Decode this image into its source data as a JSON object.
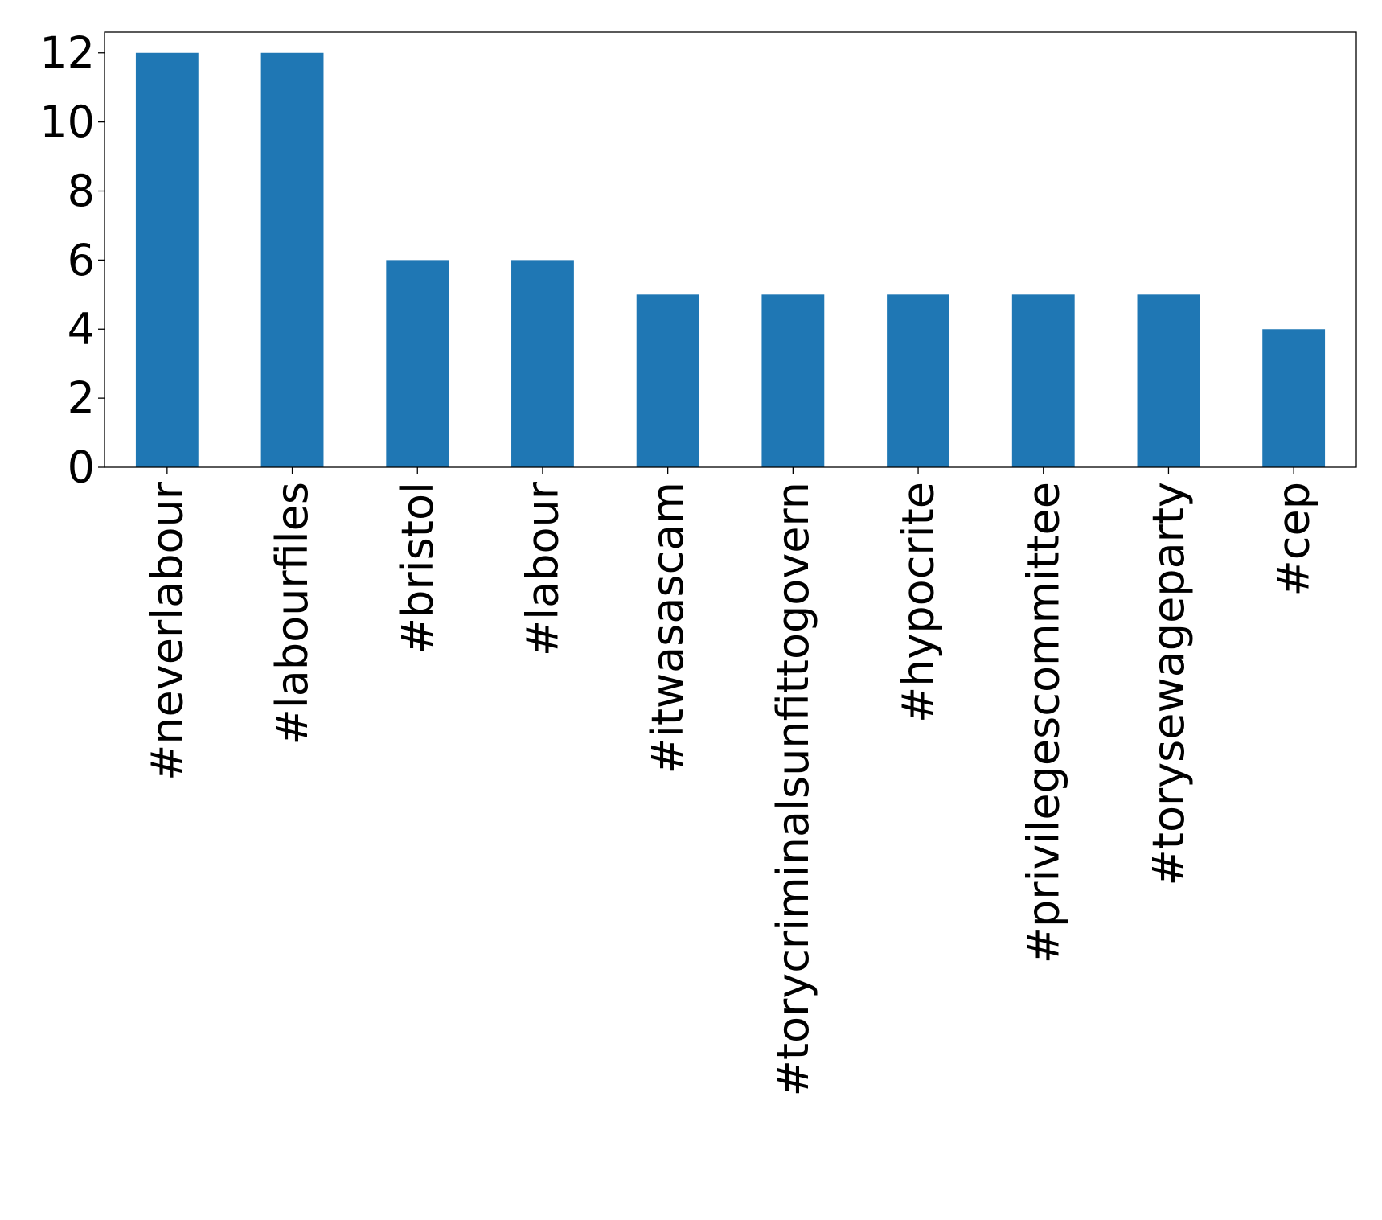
{
  "chart_data": {
    "type": "bar",
    "title": "",
    "xlabel": "",
    "ylabel": "",
    "categories": [
      "#neverlabour",
      "#labourfiles",
      "#bristol",
      "#labour",
      "#itwasascam",
      "#torycriminalsunfittogovern",
      "#hypocrite",
      "#privilegescommittee",
      "#torysewageparty",
      "#cep"
    ],
    "values": [
      12,
      12,
      6,
      6,
      5,
      5,
      5,
      5,
      5,
      4
    ],
    "ylim": [
      0,
      12.6
    ],
    "yticks": [
      0,
      2,
      4,
      6,
      8,
      10,
      12
    ],
    "grid": false,
    "bar_color": "#1f77b4"
  }
}
